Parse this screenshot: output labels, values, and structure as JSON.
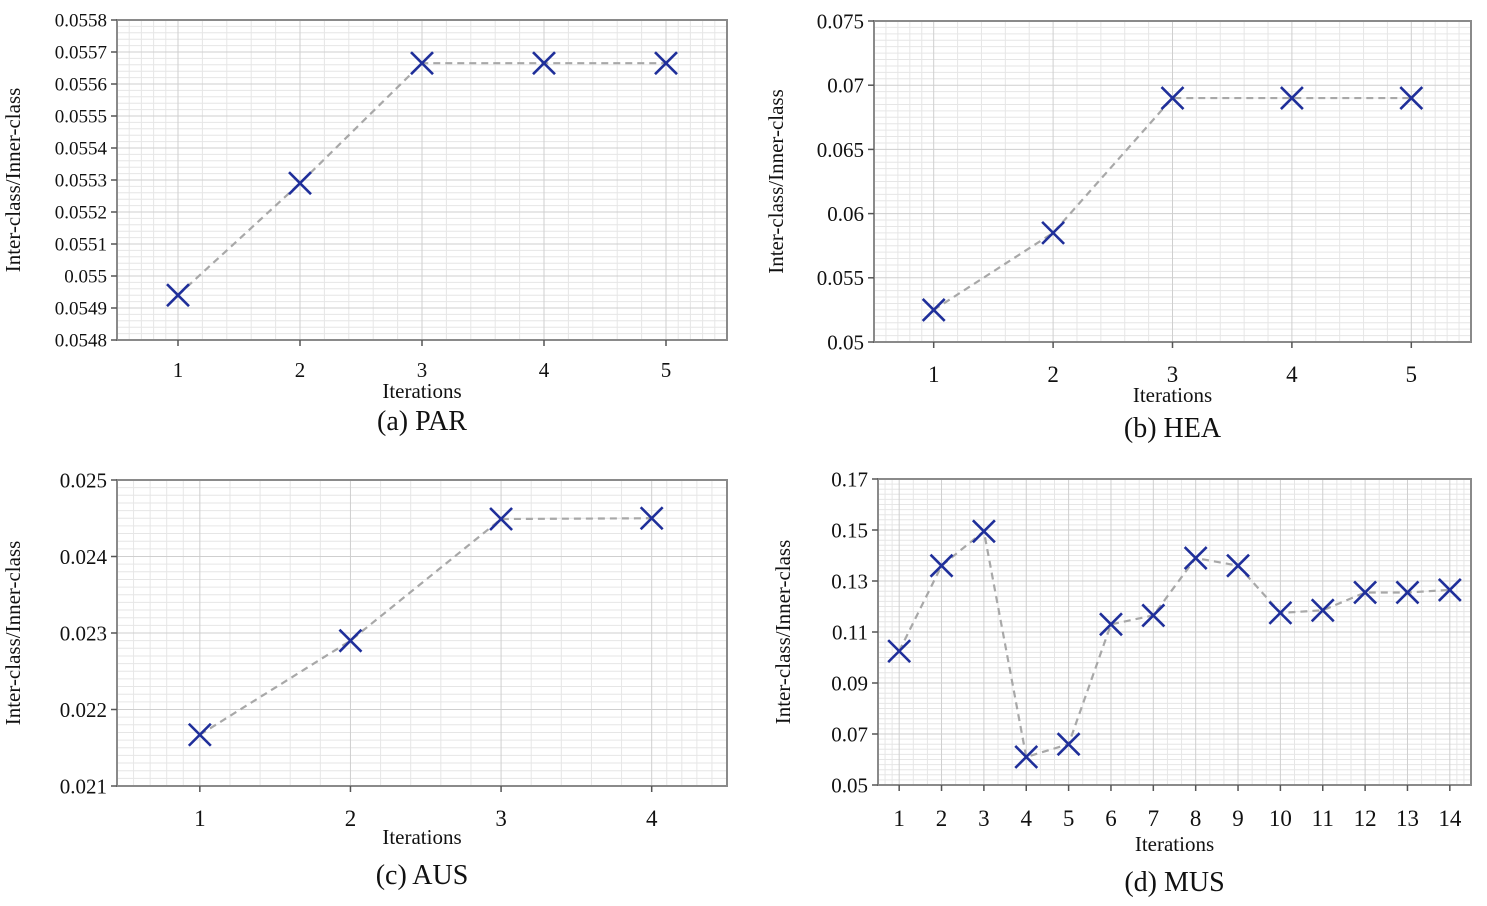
{
  "chart_data": [
    {
      "type": "line",
      "caption": "(a) PAR",
      "xlabel": "Iterations",
      "ylabel": "Inter-class/Inner-class",
      "x": [
        1,
        2,
        3,
        4,
        5
      ],
      "values": [
        0.05494,
        0.05529,
        0.055665,
        0.055665,
        0.055665
      ],
      "xlim": [
        0.5,
        5.5
      ],
      "ylim": [
        0.0548,
        0.0558
      ],
      "yticks": [
        "0.0548",
        "0.0549",
        "0.055",
        "0.0551",
        "0.0552",
        "0.0553",
        "0.0554",
        "0.0555",
        "0.0556",
        "0.0557",
        "0.0558"
      ],
      "xticks": [
        "1",
        "2",
        "3",
        "4",
        "5"
      ],
      "marker": "x",
      "marker_color": "#1f2f9a",
      "line_color": "#a8a8a8",
      "line_style": "dashed",
      "grid": true
    },
    {
      "type": "line",
      "caption": "(b) HEA",
      "xlabel": "Iterations",
      "ylabel": "Inter-class/Inner-class",
      "x": [
        1,
        2,
        3,
        4,
        5
      ],
      "values": [
        0.0525,
        0.0585,
        0.069,
        0.069,
        0.069
      ],
      "xlim": [
        0.5,
        5.5
      ],
      "ylim": [
        0.05,
        0.075
      ],
      "yticks": [
        "0.05",
        "0.055",
        "0.06",
        "0.065",
        "0.07",
        "0.075"
      ],
      "xticks": [
        "1",
        "2",
        "3",
        "4",
        "5"
      ],
      "marker": "x",
      "marker_color": "#1f2f9a",
      "line_color": "#a8a8a8",
      "line_style": "dashed",
      "grid": true
    },
    {
      "type": "line",
      "caption": "(c) AUS",
      "xlabel": "Iterations",
      "ylabel": "Inter-class/Inner-class",
      "x": [
        1,
        2,
        3,
        4
      ],
      "values": [
        0.02167,
        0.0229,
        0.02449,
        0.0245
      ],
      "xlim": [
        0.45,
        4.5
      ],
      "ylim": [
        0.021,
        0.025
      ],
      "yticks": [
        "0.021",
        "0.022",
        "0.023",
        "0.024",
        "0.025"
      ],
      "xticks": [
        "1",
        "2",
        "3",
        "4"
      ],
      "marker": "x",
      "marker_color": "#1f2f9a",
      "line_color": "#a8a8a8",
      "line_style": "dashed",
      "grid": true
    },
    {
      "type": "line",
      "caption": "(d) MUS",
      "xlabel": "Iterations",
      "ylabel": "Inter-class/Inner-class",
      "x": [
        1,
        2,
        3,
        4,
        5,
        6,
        7,
        8,
        9,
        10,
        11,
        12,
        13,
        14
      ],
      "values": [
        0.1025,
        0.136,
        0.1495,
        0.061,
        0.066,
        0.113,
        0.1165,
        0.139,
        0.136,
        0.1175,
        0.1185,
        0.1255,
        0.1255,
        0.1265
      ],
      "xlim": [
        0.5,
        14.5
      ],
      "ylim": [
        0.05,
        0.17
      ],
      "yticks": [
        "0.05",
        "0.07",
        "0.09",
        "0.11",
        "0.13",
        "0.15",
        "0.17"
      ],
      "xticks": [
        "1",
        "2",
        "3",
        "4",
        "5",
        "6",
        "7",
        "8",
        "9",
        "10",
        "11",
        "12",
        "13",
        "14"
      ],
      "marker": "x",
      "marker_color": "#1f2f9a",
      "line_color": "#a8a8a8",
      "line_style": "dashed",
      "grid": true
    }
  ]
}
